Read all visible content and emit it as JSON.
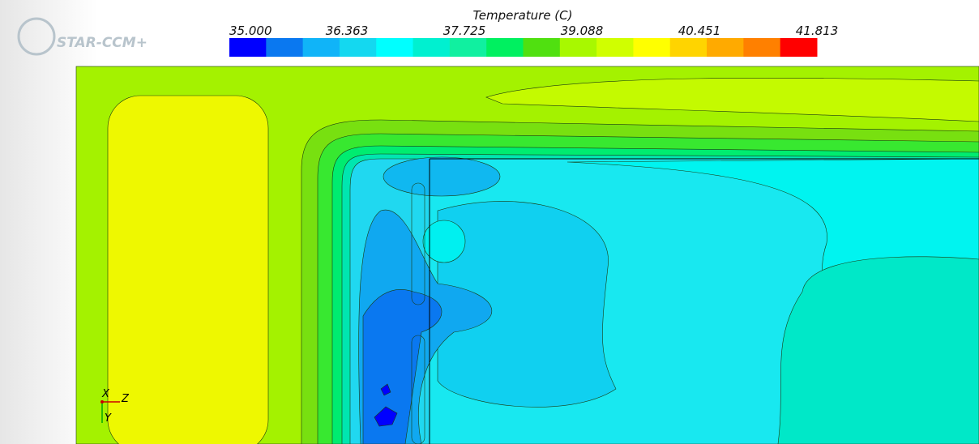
{
  "logo": "STAR-CCM+",
  "legend": {
    "title": "Temperature (C)",
    "labels": [
      "35.000",
      "36.363",
      "37.725",
      "39.088",
      "40.451",
      "41.813"
    ],
    "colors": [
      "#0000ff",
      "#0a78f0",
      "#10b4f8",
      "#14d8f0",
      "#00ffff",
      "#00f0d0",
      "#10f0a0",
      "#00f060",
      "#50e010",
      "#a8f800",
      "#d0ff00",
      "#ffff00",
      "#ffd400",
      "#ffaa00",
      "#ff8000",
      "#ff0000"
    ]
  },
  "axes": {
    "x": "X",
    "z": "Z",
    "y": "Y"
  }
}
